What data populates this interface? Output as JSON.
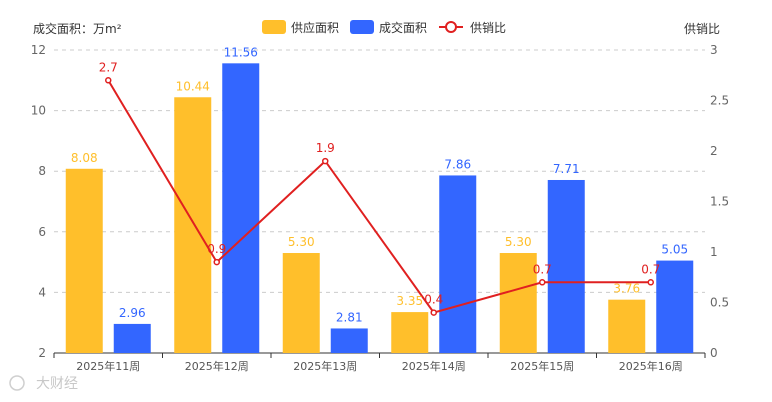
{
  "chart_data": {
    "type": "bar",
    "categories": [
      "2025年11周",
      "2025年12周",
      "2025年13周",
      "2025年14周",
      "2025年15周",
      "2025年16周"
    ],
    "series": [
      {
        "name": "供应面积",
        "type": "bar",
        "axis": "left",
        "color": "#FFBF2B",
        "values": [
          8.08,
          10.44,
          5.3,
          3.35,
          5.3,
          3.76
        ],
        "labels": [
          "8.08",
          "10.44",
          "5.30",
          "3.35",
          "5.30",
          "3.76"
        ]
      },
      {
        "name": "成交面积",
        "type": "bar",
        "axis": "left",
        "color": "#3366FF",
        "values": [
          2.96,
          11.56,
          2.81,
          7.86,
          7.71,
          5.05
        ],
        "labels": [
          "2.96",
          "11.56",
          "2.81",
          "7.86",
          "7.71",
          "5.05"
        ]
      },
      {
        "name": "供销比",
        "type": "line",
        "axis": "right",
        "color": "#E02020",
        "values": [
          2.7,
          0.9,
          1.9,
          0.4,
          0.7,
          0.7
        ],
        "labels": [
          "2.7",
          "0.9",
          "1.9",
          "0.4",
          "0.7",
          "0.7"
        ]
      }
    ],
    "y_left": {
      "label": "成交面积：万m²",
      "min": 2,
      "max": 12,
      "ticks": [
        2,
        4,
        6,
        8,
        10,
        12
      ],
      "tick_labels": [
        "2",
        "4",
        "6",
        "8",
        "10",
        "12"
      ]
    },
    "y_right": {
      "label": "供销比",
      "min": 0,
      "max": 3,
      "ticks": [
        0,
        0.5,
        1,
        1.5,
        2,
        2.5,
        3
      ],
      "tick_labels": [
        "0",
        "0.5",
        "1",
        "1.5",
        "2",
        "2.5",
        "3"
      ]
    },
    "grid": true,
    "legend": "top-center"
  },
  "watermark": "大财经",
  "watermark_icon": "camera-icon"
}
